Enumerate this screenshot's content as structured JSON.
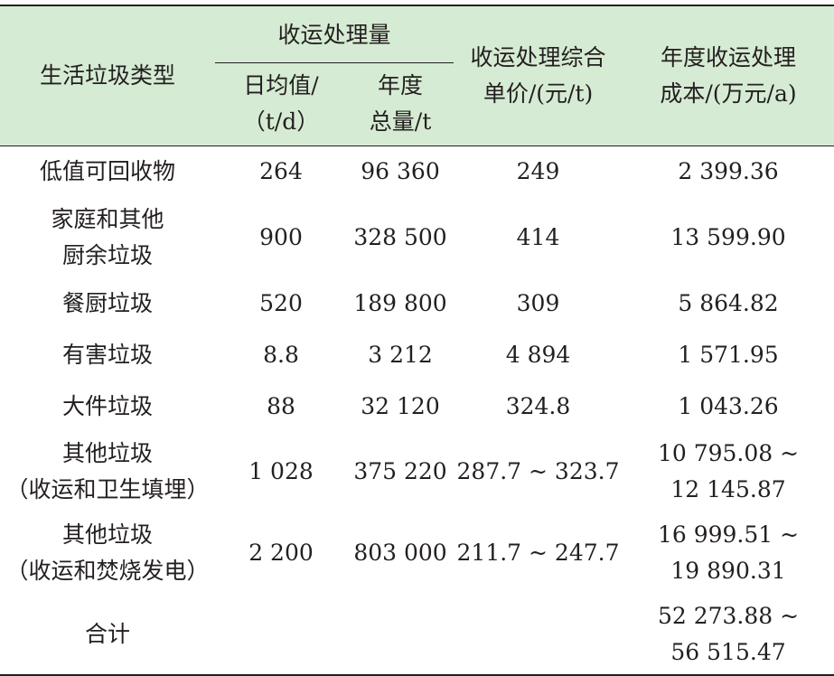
{
  "header": {
    "type_label": "生活垃圾类型",
    "volume_group": "收运处理量",
    "daily_avg": [
      "日均值/",
      "（t/d）"
    ],
    "annual_total": [
      "年度",
      "总量/t"
    ],
    "unit_price": [
      "收运处理综合",
      "单价/(元/t)"
    ],
    "annual_cost": [
      "年度收运处理",
      "成本/(万元/a)"
    ]
  },
  "rows": [
    {
      "type": [
        "低值可回收物"
      ],
      "daily": "264",
      "annual": "96 360",
      "price": "249",
      "cost": [
        "2 399.36"
      ]
    },
    {
      "type": [
        "家庭和其他",
        "厨余垃圾"
      ],
      "daily": "900",
      "annual": "328 500",
      "price": "414",
      "cost": [
        "13 599.90"
      ]
    },
    {
      "type": [
        "餐厨垃圾"
      ],
      "daily": "520",
      "annual": "189 800",
      "price": "309",
      "cost": [
        "5 864.82"
      ]
    },
    {
      "type": [
        "有害垃圾"
      ],
      "daily": "8.8",
      "annual": "3 212",
      "price": "4 894",
      "cost": [
        "1 571.95"
      ]
    },
    {
      "type": [
        "大件垃圾"
      ],
      "daily": "88",
      "annual": "32 120",
      "price": "324.8",
      "cost": [
        "1 043.26"
      ]
    },
    {
      "type": [
        "其他垃圾",
        "（收运和卫生填埋）"
      ],
      "daily": "1 028",
      "annual": "375 220",
      "price": "287.7 ~ 323.7",
      "cost": [
        "10 795.08 ~",
        "12 145.87"
      ]
    },
    {
      "type": [
        "其他垃圾",
        "（收运和焚烧发电）"
      ],
      "daily": "2 200",
      "annual": "803 000",
      "price": "211.7 ~ 247.7",
      "cost": [
        "16 999.51 ~",
        "19 890.31"
      ]
    },
    {
      "type": [
        "合计"
      ],
      "daily": "",
      "annual": "",
      "price": "",
      "cost": [
        "52 273.88 ~",
        "56 515.47"
      ]
    }
  ]
}
